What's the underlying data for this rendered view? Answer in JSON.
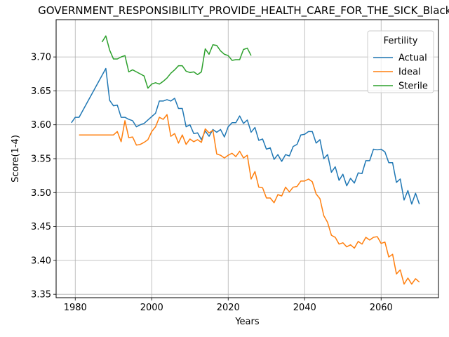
{
  "chart_data": {
    "type": "line",
    "title": "GOVERNMENT_RESPONSIBILITY_PROVIDE_HEALTH_CARE_FOR_THE_SICK_Black_",
    "xlabel": "Years",
    "ylabel": "Score(1-4)",
    "xlim": [
      1975,
      2075
    ],
    "ylim": [
      3.345,
      3.755
    ],
    "xticks": [
      1980,
      2000,
      2020,
      2040,
      2060
    ],
    "yticks": [
      3.35,
      3.4,
      3.45,
      3.5,
      3.55,
      3.6,
      3.65,
      3.7
    ],
    "grid": true,
    "legend": {
      "title": "Fertility",
      "placement": "upper right"
    },
    "series": [
      {
        "name": "Actual",
        "color": "#1f77b4",
        "x": [
          1979,
          1980,
          1981,
          1988,
          1989,
          1990,
          1991,
          1992,
          1993,
          1994,
          1995,
          1996,
          1997,
          1998,
          1999,
          2000,
          2001,
          2002,
          2003,
          2004,
          2005,
          2006,
          2007,
          2008,
          2009,
          2010,
          2011,
          2012,
          2013,
          2014,
          2015,
          2016,
          2017,
          2018,
          2019,
          2020,
          2021,
          2022,
          2023,
          2024,
          2025,
          2026,
          2027,
          2028,
          2029,
          2030,
          2031,
          2032,
          2033,
          2034,
          2035,
          2036,
          2037,
          2038,
          2039,
          2040,
          2041,
          2042,
          2043,
          2044,
          2045,
          2046,
          2047,
          2048,
          2049,
          2050,
          2051,
          2052,
          2053,
          2054,
          2055,
          2056,
          2057,
          2058,
          2059,
          2060,
          2061,
          2062,
          2063,
          2064,
          2065,
          2066,
          2067,
          2068,
          2069,
          2070
        ],
        "values": [
          3.603,
          3.611,
          3.611,
          3.683,
          3.636,
          3.628,
          3.629,
          3.611,
          3.611,
          3.608,
          3.606,
          3.597,
          3.6,
          3.602,
          3.607,
          3.612,
          3.617,
          3.635,
          3.635,
          3.637,
          3.635,
          3.639,
          3.624,
          3.624,
          3.597,
          3.6,
          3.587,
          3.588,
          3.578,
          3.591,
          3.583,
          3.593,
          3.589,
          3.593,
          3.582,
          3.597,
          3.603,
          3.603,
          3.613,
          3.602,
          3.607,
          3.589,
          3.596,
          3.577,
          3.579,
          3.564,
          3.566,
          3.549,
          3.556,
          3.546,
          3.556,
          3.554,
          3.568,
          3.571,
          3.585,
          3.586,
          3.59,
          3.59,
          3.573,
          3.578,
          3.55,
          3.556,
          3.53,
          3.538,
          3.518,
          3.527,
          3.51,
          3.521,
          3.514,
          3.529,
          3.528,
          3.547,
          3.547,
          3.564,
          3.563,
          3.564,
          3.56,
          3.544,
          3.544,
          3.515,
          3.52,
          3.489,
          3.503,
          3.483,
          3.499,
          3.483
        ]
      },
      {
        "name": "Ideal",
        "color": "#ff7f0e",
        "x": [
          1981,
          1990,
          1991,
          1992,
          1993,
          1994,
          1995,
          1996,
          1997,
          1998,
          1999,
          2000,
          2001,
          2002,
          2003,
          2004,
          2005,
          2006,
          2007,
          2008,
          2009,
          2010,
          2011,
          2012,
          2013,
          2014,
          2015,
          2016,
          2017,
          2018,
          2019,
          2020,
          2021,
          2022,
          2023,
          2024,
          2025,
          2026,
          2027,
          2028,
          2029,
          2030,
          2031,
          2032,
          2033,
          2034,
          2035,
          2036,
          2037,
          2038,
          2039,
          2040,
          2041,
          2042,
          2043,
          2044,
          2045,
          2046,
          2047,
          2048,
          2049,
          2050,
          2051,
          2052,
          2053,
          2054,
          2055,
          2056,
          2057,
          2058,
          2059,
          2060,
          2061,
          2062,
          2063,
          2064,
          2065,
          2066,
          2067,
          2068,
          2069,
          2070
        ],
        "values": [
          3.585,
          3.585,
          3.59,
          3.575,
          3.606,
          3.581,
          3.582,
          3.57,
          3.571,
          3.574,
          3.578,
          3.59,
          3.597,
          3.611,
          3.608,
          3.615,
          3.583,
          3.587,
          3.573,
          3.585,
          3.571,
          3.579,
          3.575,
          3.578,
          3.574,
          3.594,
          3.588,
          3.592,
          3.557,
          3.555,
          3.551,
          3.555,
          3.558,
          3.553,
          3.561,
          3.551,
          3.555,
          3.52,
          3.531,
          3.508,
          3.507,
          3.492,
          3.492,
          3.485,
          3.497,
          3.495,
          3.508,
          3.501,
          3.508,
          3.509,
          3.517,
          3.517,
          3.52,
          3.516,
          3.498,
          3.491,
          3.466,
          3.456,
          3.437,
          3.434,
          3.424,
          3.426,
          3.42,
          3.423,
          3.418,
          3.428,
          3.424,
          3.434,
          3.43,
          3.434,
          3.435,
          3.425,
          3.427,
          3.405,
          3.409,
          3.38,
          3.386,
          3.365,
          3.374,
          3.365,
          3.373,
          3.368
        ]
      },
      {
        "name": "Sterile",
        "color": "#2ca02c",
        "x": [
          1987,
          1988,
          1989,
          1990,
          1991,
          1992,
          1993,
          1994,
          1995,
          1996,
          1997,
          1998,
          1999,
          2000,
          2001,
          2002,
          2003,
          2004,
          2005,
          2006,
          2007,
          2008,
          2009,
          2010,
          2011,
          2012,
          2013,
          2014,
          2015,
          2016,
          2017,
          2018,
          2019,
          2020,
          2021,
          2022,
          2023,
          2024,
          2025,
          2026
        ],
        "values": [
          3.722,
          3.731,
          3.71,
          3.697,
          3.697,
          3.7,
          3.702,
          3.678,
          3.681,
          3.678,
          3.675,
          3.672,
          3.654,
          3.66,
          3.662,
          3.66,
          3.664,
          3.669,
          3.676,
          3.681,
          3.687,
          3.687,
          3.679,
          3.677,
          3.678,
          3.674,
          3.678,
          3.712,
          3.704,
          3.718,
          3.717,
          3.709,
          3.704,
          3.702,
          3.695,
          3.696,
          3.696,
          3.711,
          3.713,
          3.702
        ]
      }
    ]
  }
}
